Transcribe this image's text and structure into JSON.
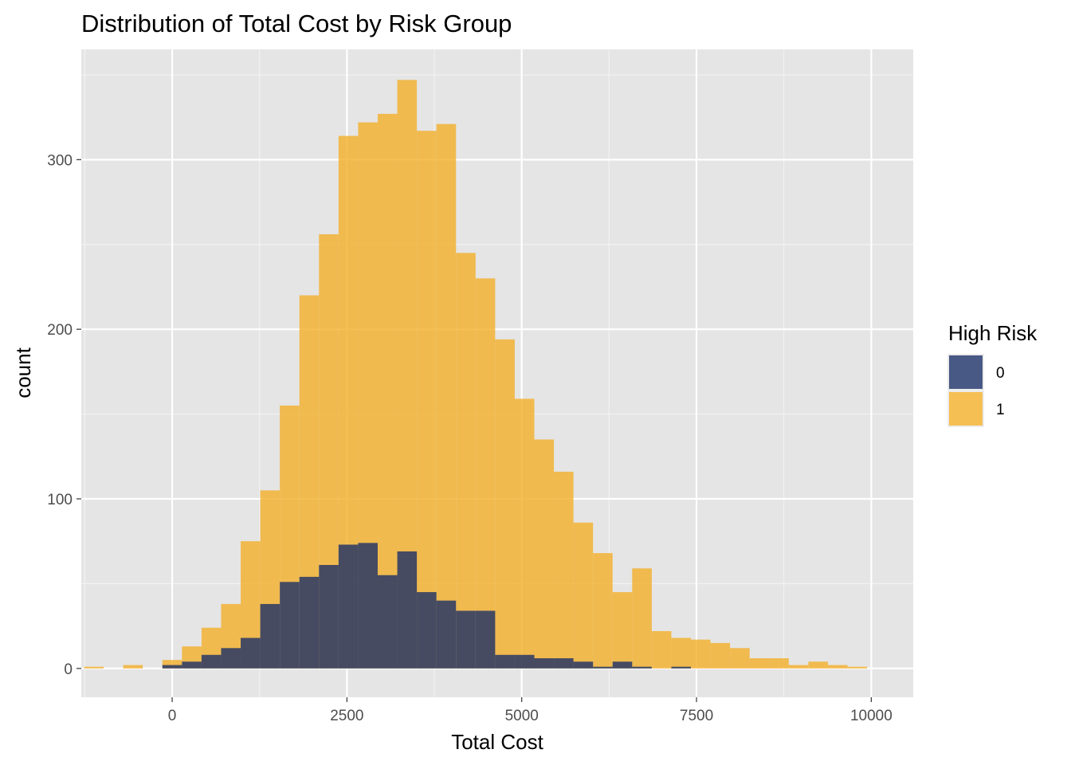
{
  "chart_data": {
    "type": "histogram",
    "title": "Distribution of Total Cost by Risk Group",
    "xlabel": "Total Cost",
    "ylabel": "count",
    "xlim": [
      -1300,
      10600
    ],
    "ylim": [
      -17,
      365
    ],
    "x_ticks": [
      0,
      2500,
      5000,
      7500,
      10000
    ],
    "x_tick_labels": [
      "0",
      "2500",
      "5000",
      "7500",
      "10000"
    ],
    "y_ticks": [
      0,
      100,
      200,
      300
    ],
    "y_tick_labels": [
      "0",
      "100",
      "200",
      "300"
    ],
    "grid": true,
    "bin_width": 280,
    "bin_start": -1260,
    "legend": {
      "title": "High Risk",
      "placement": "right",
      "entries": [
        {
          "label": "0",
          "color": "#1B2F66"
        },
        {
          "label": "1",
          "color": "#F2AF29"
        }
      ]
    },
    "series": [
      {
        "name": "1",
        "color": "#F2AF29",
        "opacity": 0.8,
        "counts": [
          1,
          0,
          2,
          0,
          5,
          13,
          24,
          38,
          75,
          105,
          155,
          220,
          256,
          314,
          322,
          327,
          347,
          317,
          321,
          245,
          230,
          194,
          159,
          135,
          116,
          86,
          68,
          45,
          59,
          22,
          18,
          17,
          15,
          12,
          6,
          6,
          2,
          4,
          2,
          1
        ]
      },
      {
        "name": "0",
        "color": "#1B2F66",
        "opacity": 0.8,
        "counts": [
          0,
          0,
          0,
          0,
          2,
          4,
          8,
          12,
          18,
          38,
          51,
          54,
          61,
          73,
          74,
          55,
          69,
          45,
          40,
          34,
          34,
          8,
          8,
          6,
          6,
          4,
          1,
          4,
          1,
          0,
          1,
          0,
          0,
          0,
          0,
          0,
          0,
          0,
          0,
          0
        ]
      }
    ]
  }
}
